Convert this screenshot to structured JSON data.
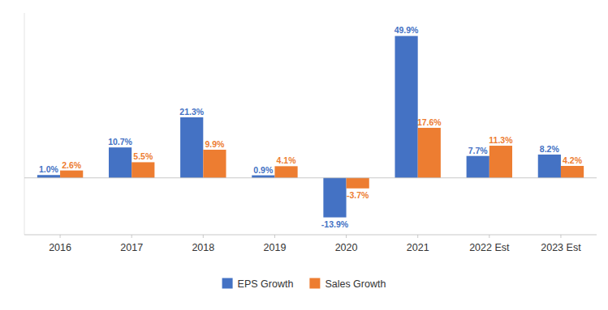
{
  "chart_data": {
    "type": "bar",
    "categories": [
      "2016",
      "2017",
      "2018",
      "2019",
      "2020",
      "2021",
      "2022 Est",
      "2023 Est"
    ],
    "series": [
      {
        "name": "EPS Growth",
        "color": "#4472C4",
        "values": [
          1.0,
          10.7,
          21.3,
          0.9,
          -13.9,
          49.9,
          7.7,
          8.2
        ],
        "value_labels": [
          "1.0%",
          "10.7%",
          "21.3%",
          "0.9%",
          "-13.9%",
          "49.9%",
          "7.7%",
          "8.2%"
        ]
      },
      {
        "name": "Sales Growth",
        "color": "#ED7D31",
        "values": [
          2.6,
          5.5,
          9.9,
          4.1,
          -3.7,
          17.6,
          11.3,
          4.2
        ],
        "value_labels": [
          "2.6%",
          "5.5%",
          "9.9%",
          "4.1%",
          "-3.7%",
          "17.6%",
          "11.3%",
          "4.2%"
        ]
      }
    ],
    "ylim": [
      -20,
      58
    ],
    "data_labels": true,
    "tick_labels": "x",
    "legend": "bottom",
    "grid": false
  }
}
